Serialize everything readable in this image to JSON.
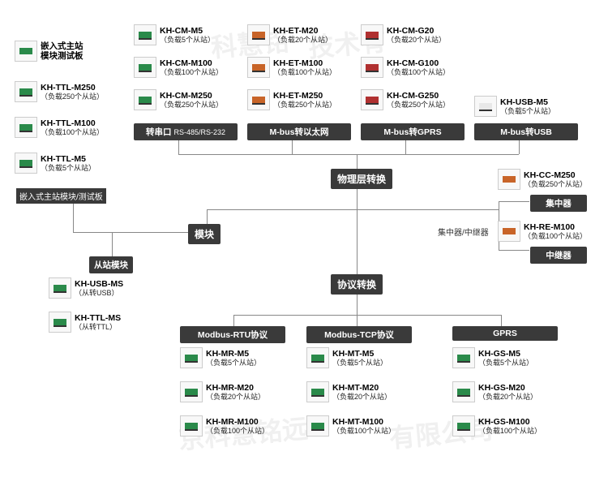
{
  "colors": {
    "category_bg": "#3a3a3a",
    "category_fg": "#ffffff",
    "line": "#888888",
    "thumb_green": "#2a8a4a",
    "thumb_orange": "#c86428",
    "thumb_red": "#b03030",
    "thumb_white": "#e8e8e8"
  },
  "watermarks": [
    "科慧铭",
    "京科慧铭远",
    "技术有",
    "有限公司"
  ],
  "left_col": {
    "header": {
      "line1": "嵌入式主站",
      "line2": "模块测试板"
    },
    "items": [
      {
        "name": "KH-TTL-M250",
        "desc": "（负载250个从站）",
        "color": "#2a8a4a"
      },
      {
        "name": "KH-TTL-M100",
        "desc": "（负载100个从站）",
        "color": "#2a8a4a"
      },
      {
        "name": "KH-TTL-M5",
        "desc": "（负载5个从站）",
        "color": "#2a8a4a"
      }
    ]
  },
  "top_grid": {
    "cols": [
      {
        "header": "转串口",
        "extra": "RS-485/RS-232",
        "items": [
          {
            "name": "KH-CM-M5",
            "desc": "（负载5个从站）",
            "color": "#2a8a4a"
          },
          {
            "name": "KH-CM-M100",
            "desc": "（负载100个从站）",
            "color": "#2a8a4a"
          },
          {
            "name": "KH-CM-M250",
            "desc": "（负载250个从站）",
            "color": "#2a8a4a"
          }
        ]
      },
      {
        "header": "M-bus转以太网",
        "items": [
          {
            "name": "KH-ET-M20",
            "desc": "（负载20个从站）",
            "color": "#c86428"
          },
          {
            "name": "KH-ET-M100",
            "desc": "（负载100个从站）",
            "color": "#c86428"
          },
          {
            "name": "KH-ET-M250",
            "desc": "（负载250个从站）",
            "color": "#c86428"
          }
        ]
      },
      {
        "header": "M-bus转GPRS",
        "items": [
          {
            "name": "KH-CM-G20",
            "desc": "（负载20个从站）",
            "color": "#b03030"
          },
          {
            "name": "KH-CM-G100",
            "desc": "（负载100个从站）",
            "color": "#b03030"
          },
          {
            "name": "KH-CM-G250",
            "desc": "（负载250个从站）",
            "color": "#b03030"
          }
        ]
      },
      {
        "header": "M-bus转USB",
        "items": [
          {
            "name": "KH-USB-M5",
            "desc": "（负载5个从站）",
            "color": "#e8e8e8"
          }
        ]
      }
    ]
  },
  "center": {
    "physical": "物理层转换",
    "module": "模块",
    "embed_label": "嵌入式主站模块/测试板",
    "hub_label": "集中器/中继器",
    "protocol": "协议转换"
  },
  "right_col": {
    "hub": {
      "header": "集中器",
      "item": {
        "name": "KH-CC-M250",
        "desc": "（负载250个从站）",
        "color": "#c86428"
      }
    },
    "repeater": {
      "header": "中继器",
      "item": {
        "name": "KH-RE-M100",
        "desc": "（负载100个从站）",
        "color": "#c86428"
      }
    }
  },
  "slave": {
    "header": "从站模块",
    "items": [
      {
        "name": "KH-USB-MS",
        "desc": "（从转USB）",
        "color": "#2a8a4a"
      },
      {
        "name": "KH-TTL-MS",
        "desc": "（从转TTL）",
        "color": "#2a8a4a"
      }
    ]
  },
  "bottom_grid": {
    "cols": [
      {
        "header": "Modbus-RTU协议",
        "items": [
          {
            "name": "KH-MR-M5",
            "desc": "（负载5个从站）",
            "color": "#2a8a4a"
          },
          {
            "name": "KH-MR-M20",
            "desc": "（负载20个从站）",
            "color": "#2a8a4a"
          },
          {
            "name": "KH-MR-M100",
            "desc": "（负载100个从站）",
            "color": "#2a8a4a"
          }
        ]
      },
      {
        "header": "Modbus-TCP协议",
        "items": [
          {
            "name": "KH-MT-M5",
            "desc": "（负载5个从站）",
            "color": "#2a8a4a"
          },
          {
            "name": "KH-MT-M20",
            "desc": "（负载20个从站）",
            "color": "#2a8a4a"
          },
          {
            "name": "KH-MT-M100",
            "desc": "（负载100个从站）",
            "color": "#2a8a4a"
          }
        ]
      },
      {
        "header": "GPRS",
        "items": [
          {
            "name": "KH-GS-M5",
            "desc": "（负载5个从站）",
            "color": "#2a8a4a"
          },
          {
            "name": "KH-GS-M20",
            "desc": "（负载20个从站）",
            "color": "#2a8a4a"
          },
          {
            "name": "KH-GS-M100",
            "desc": "（负载100个从站）",
            "color": "#2a8a4a"
          }
        ]
      }
    ]
  }
}
